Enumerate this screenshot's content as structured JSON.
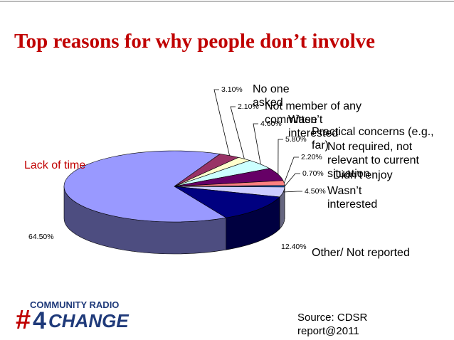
{
  "chart_data": {
    "type": "pie",
    "title": "Top reasons for why people don’t involve",
    "categories": [
      "Lack of time",
      "No one asked",
      "Not member of any committee",
      "Wasn’t interested",
      "Practical concerns (e.g., far)",
      "Not required, not relevant to current situation",
      "Didn’t enjoy",
      "Wasn’t interested",
      "Other/ Not reported"
    ],
    "values": [
      64.5,
      3.1,
      2.1,
      4.6,
      5.8,
      2.2,
      0.7,
      4.5,
      12.4
    ],
    "value_labels": [
      "64.50%",
      "3.10%",
      "2.10%",
      "4.60%",
      "5.80%",
      "2.20%",
      "0.70%",
      "4.50%",
      "12.40%"
    ],
    "colors": [
      "#9999ff",
      "#993366",
      "#ffffcc",
      "#ccffff",
      "#660066",
      "#ff8080",
      "#0066cc",
      "#ccccff",
      "#000080"
    ]
  },
  "source": "Source: CDSR report@2011",
  "logo": {
    "top": "COMMUNITY RADIO",
    "hash": "#",
    "number": "4",
    "word": "CHANGE"
  }
}
